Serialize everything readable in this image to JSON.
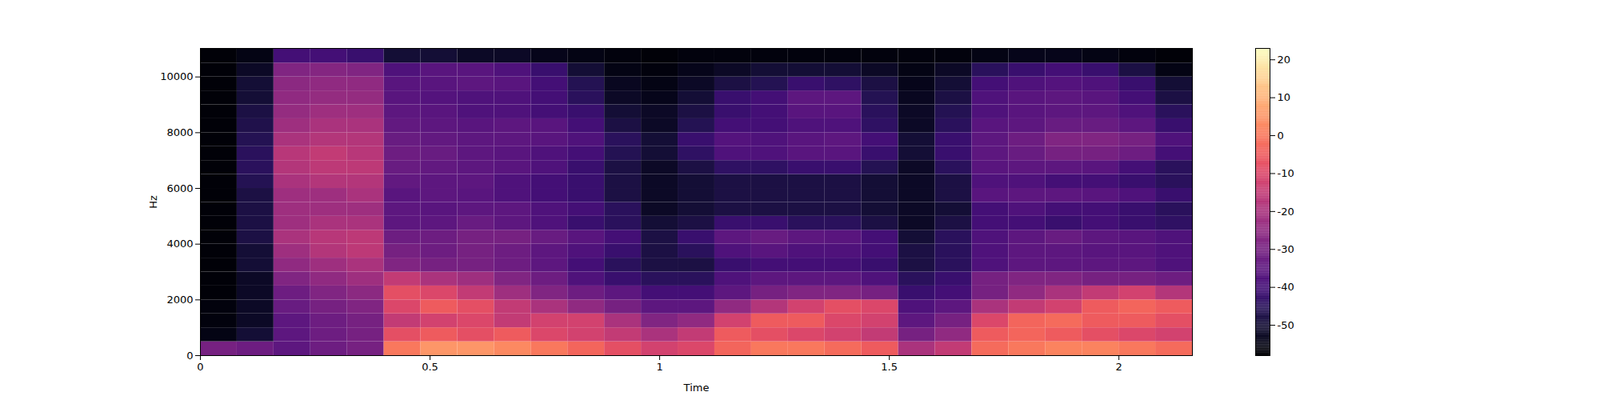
{
  "chart_data": {
    "type": "heatmap",
    "x_label": "Time",
    "y_label": "Hz",
    "xlim": [
      0,
      2.16
    ],
    "ylim": [
      0,
      11025
    ],
    "xticks": [
      0,
      0.5,
      1,
      1.5,
      2
    ],
    "yticks": [
      0,
      2000,
      4000,
      6000,
      8000,
      10000
    ],
    "color": "magma",
    "x_edges": [
      0,
      0.08,
      0.16,
      0.24,
      0.32,
      0.4,
      0.48,
      0.56,
      0.64,
      0.72,
      0.8,
      0.88,
      0.96,
      1.04,
      1.12,
      1.2,
      1.28,
      1.36,
      1.44,
      1.52,
      1.6,
      1.68,
      1.76,
      1.84,
      1.92,
      2.0,
      2.08,
      2.16
    ],
    "y_edges": [
      0,
      500,
      1000,
      1500,
      2000,
      2500,
      3000,
      3500,
      4000,
      4500,
      5000,
      5500,
      6000,
      6500,
      7000,
      7500,
      8000,
      8500,
      9000,
      9500,
      10000,
      10500,
      11025
    ],
    "cells": [
      [
        -30,
        -32,
        -35,
        -32,
        -30,
        0,
        5,
        5,
        3,
        0,
        -3,
        -8,
        -12,
        -10,
        -3,
        0,
        0,
        -2,
        -5,
        -20,
        -15,
        -2,
        0,
        2,
        2,
        0,
        -2
      ],
      [
        -55,
        -50,
        -35,
        -32,
        -30,
        -8,
        -5,
        -8,
        -5,
        -10,
        -12,
        -15,
        -20,
        -15,
        -5,
        -8,
        -10,
        -12,
        -15,
        -30,
        -25,
        -5,
        -3,
        -5,
        -8,
        -10,
        -12
      ],
      [
        -56,
        -52,
        -35,
        -32,
        -30,
        -15,
        -12,
        -10,
        -15,
        -12,
        -12,
        -20,
        -28,
        -25,
        -12,
        -5,
        -5,
        -10,
        -12,
        -35,
        -30,
        -10,
        -3,
        -2,
        -5,
        -5,
        -8
      ],
      [
        -56,
        -52,
        -33,
        -30,
        -28,
        -10,
        -5,
        -8,
        -15,
        -20,
        -25,
        -30,
        -35,
        -35,
        -25,
        -18,
        -12,
        -8,
        -10,
        -38,
        -35,
        -20,
        -15,
        -12,
        -5,
        -3,
        -5
      ],
      [
        -57,
        -52,
        -32,
        -28,
        -26,
        -8,
        -10,
        -15,
        -22,
        -28,
        -32,
        -35,
        -40,
        -40,
        -35,
        -30,
        -28,
        -28,
        -30,
        -42,
        -40,
        -30,
        -25,
        -20,
        -15,
        -12,
        -18
      ],
      [
        -57,
        -52,
        -28,
        -25,
        -22,
        -15,
        -20,
        -22,
        -28,
        -32,
        -38,
        -42,
        -45,
        -45,
        -38,
        -35,
        -35,
        -35,
        -38,
        -45,
        -42,
        -30,
        -28,
        -28,
        -30,
        -30,
        -32
      ],
      [
        -57,
        -50,
        -25,
        -22,
        -20,
        -28,
        -30,
        -30,
        -32,
        -35,
        -40,
        -45,
        -48,
        -48,
        -42,
        -40,
        -40,
        -40,
        -42,
        -48,
        -45,
        -38,
        -35,
        -35,
        -35,
        -35,
        -38
      ],
      [
        -57,
        -50,
        -22,
        -18,
        -16,
        -30,
        -32,
        -30,
        -32,
        -35,
        -38,
        -42,
        -48,
        -45,
        -38,
        -36,
        -38,
        -38,
        -40,
        -48,
        -45,
        -38,
        -35,
        -35,
        -36,
        -36,
        -38
      ],
      [
        -57,
        -48,
        -20,
        -17,
        -16,
        -32,
        -32,
        -30,
        -30,
        -33,
        -36,
        -40,
        -48,
        -42,
        -35,
        -33,
        -35,
        -36,
        -40,
        -50,
        -45,
        -38,
        -35,
        -33,
        -35,
        -36,
        -38
      ],
      [
        -57,
        -48,
        -22,
        -20,
        -20,
        -35,
        -35,
        -33,
        -35,
        -38,
        -42,
        -45,
        -50,
        -48,
        -42,
        -42,
        -45,
        -45,
        -48,
        -52,
        -48,
        -40,
        -40,
        -42,
        -40,
        -42,
        -44
      ],
      [
        -57,
        -48,
        -22,
        -22,
        -22,
        -35,
        -36,
        -35,
        -35,
        -38,
        -40,
        -45,
        -52,
        -50,
        -48,
        -48,
        -48,
        -48,
        -50,
        -52,
        -50,
        -40,
        -38,
        -40,
        -40,
        -42,
        -45
      ],
      [
        -57,
        -48,
        -22,
        -22,
        -20,
        -36,
        -35,
        -36,
        -38,
        -40,
        -42,
        -48,
        -52,
        -50,
        -48,
        -48,
        -48,
        -48,
        -50,
        -52,
        -48,
        -36,
        -35,
        -35,
        -36,
        -38,
        -42
      ],
      [
        -57,
        -46,
        -20,
        -18,
        -18,
        -34,
        -35,
        -35,
        -38,
        -40,
        -42,
        -48,
        -52,
        -50,
        -48,
        -48,
        -48,
        -48,
        -50,
        -52,
        -48,
        -38,
        -38,
        -40,
        -40,
        -42,
        -45
      ],
      [
        -57,
        -45,
        -18,
        -16,
        -16,
        -33,
        -34,
        -35,
        -36,
        -38,
        -42,
        -48,
        -52,
        -48,
        -44,
        -44,
        -42,
        -42,
        -46,
        -52,
        -45,
        -36,
        -35,
        -35,
        -36,
        -40,
        -45
      ],
      [
        -57,
        -45,
        -17,
        -15,
        -17,
        -32,
        -33,
        -35,
        -36,
        -38,
        -40,
        -46,
        -50,
        -44,
        -38,
        -38,
        -36,
        -36,
        -42,
        -50,
        -42,
        -35,
        -33,
        -30,
        -30,
        -32,
        -40
      ],
      [
        -57,
        -46,
        -20,
        -18,
        -18,
        -33,
        -34,
        -35,
        -35,
        -36,
        -38,
        -45,
        -50,
        -42,
        -37,
        -38,
        -36,
        -35,
        -40,
        -50,
        -42,
        -35,
        -32,
        -28,
        -28,
        -30,
        -38
      ],
      [
        -57,
        -47,
        -22,
        -20,
        -20,
        -34,
        -35,
        -36,
        -35,
        -36,
        -40,
        -48,
        -52,
        -46,
        -40,
        -40,
        -38,
        -38,
        -44,
        -52,
        -45,
        -36,
        -35,
        -33,
        -33,
        -35,
        -42
      ],
      [
        -57,
        -48,
        -24,
        -22,
        -22,
        -35,
        -36,
        -38,
        -38,
        -40,
        -42,
        -50,
        -52,
        -48,
        -42,
        -40,
        -36,
        -36,
        -45,
        -52,
        -46,
        -38,
        -36,
        -35,
        -35,
        -38,
        -45
      ],
      [
        -57,
        -50,
        -25,
        -24,
        -24,
        -36,
        -37,
        -38,
        -38,
        -40,
        -45,
        -52,
        -54,
        -50,
        -42,
        -40,
        -35,
        -35,
        -46,
        -53,
        -48,
        -38,
        -36,
        -35,
        -36,
        -40,
        -48
      ],
      [
        -57,
        -50,
        -26,
        -25,
        -25,
        -36,
        -36,
        -35,
        -36,
        -40,
        -46,
        -53,
        -55,
        -52,
        -48,
        -46,
        -42,
        -44,
        -48,
        -54,
        -50,
        -40,
        -38,
        -37,
        -38,
        -42,
        -50
      ],
      [
        -57,
        -52,
        -28,
        -27,
        -28,
        -38,
        -36,
        -36,
        -38,
        -42,
        -50,
        -55,
        -56,
        -54,
        -52,
        -50,
        -50,
        -50,
        -52,
        -55,
        -52,
        -45,
        -42,
        -40,
        -42,
        -48,
        -55
      ],
      [
        -57,
        -55,
        -40,
        -40,
        -42,
        -50,
        -50,
        -52,
        -52,
        -54,
        -55,
        -56,
        -57,
        -56,
        -56,
        -56,
        -56,
        -56,
        -56,
        -56,
        -56,
        -55,
        -54,
        -54,
        -55,
        -56,
        -57
      ]
    ],
    "colorbar": {
      "range": [
        -58,
        23
      ],
      "ticks": [
        -50,
        -40,
        -30,
        -20,
        -10,
        0,
        10,
        20
      ]
    }
  }
}
